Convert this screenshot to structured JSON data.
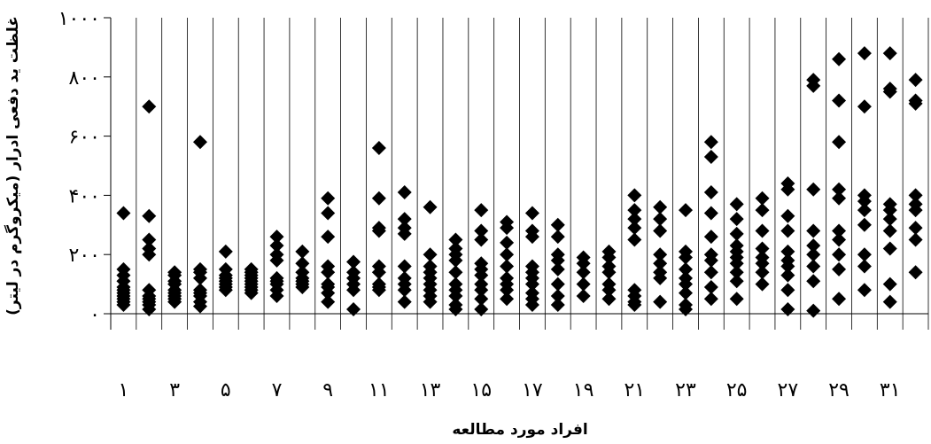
{
  "chart_data": {
    "type": "scatter",
    "xlabel": "افراد مورد مطالعه",
    "ylabel": "غلظت ید دفعی ادرار (میکروگرم در لیتر)",
    "ylim": [
      0,
      1000
    ],
    "y_ticks": [
      0,
      200,
      400,
      600,
      800,
      1000
    ],
    "y_tick_labels": [
      "۰",
      "۲۰۰",
      "۴۰۰",
      "۶۰۰",
      "۸۰۰",
      "۱۰۰۰"
    ],
    "x_categories": [
      1,
      2,
      3,
      4,
      5,
      6,
      7,
      8,
      9,
      10,
      11,
      12,
      13,
      14,
      15,
      16,
      17,
      18,
      19,
      20,
      21,
      22,
      23,
      24,
      25,
      26,
      27,
      28,
      29,
      30,
      31,
      32
    ],
    "x_tick_labels": [
      {
        "subject": 1,
        "label": "۱"
      },
      {
        "subject": 3,
        "label": "۳"
      },
      {
        "subject": 5,
        "label": "۵"
      },
      {
        "subject": 7,
        "label": "۷"
      },
      {
        "subject": 9,
        "label": "۹"
      },
      {
        "subject": 11,
        "label": "۱۱"
      },
      {
        "subject": 13,
        "label": "۱۳"
      },
      {
        "subject": 15,
        "label": "۱۵"
      },
      {
        "subject": 17,
        "label": "۱۷"
      },
      {
        "subject": 19,
        "label": "۱۹"
      },
      {
        "subject": 21,
        "label": "۲۱"
      },
      {
        "subject": 23,
        "label": "۲۳"
      },
      {
        "subject": 25,
        "label": "۲۵"
      },
      {
        "subject": 27,
        "label": "۲۷"
      },
      {
        "subject": 29,
        "label": "۲۹"
      },
      {
        "subject": 31,
        "label": "۳۱"
      }
    ],
    "grid": "vertical lines separating subjects",
    "marker": "diamond",
    "marker_color": "#000000",
    "points": [
      {
        "subject": 1,
        "values": [
          340,
          150,
          130,
          110,
          90,
          80,
          70,
          60,
          50,
          40,
          30
        ]
      },
      {
        "subject": 2,
        "values": [
          700,
          330,
          250,
          220,
          200,
          80,
          60,
          50,
          40,
          30,
          15
        ]
      },
      {
        "subject": 3,
        "values": [
          140,
          130,
          110,
          100,
          80,
          70,
          60,
          50,
          40
        ]
      },
      {
        "subject": 4,
        "values": [
          580,
          150,
          140,
          120,
          80,
          70,
          60,
          40,
          25
        ]
      },
      {
        "subject": 5,
        "values": [
          210,
          150,
          130,
          120,
          110,
          100,
          90,
          80
        ]
      },
      {
        "subject": 6,
        "values": [
          150,
          140,
          130,
          120,
          110,
          100,
          90,
          80,
          70
        ]
      },
      {
        "subject": 7,
        "values": [
          260,
          230,
          200,
          180,
          120,
          110,
          100,
          80,
          60
        ]
      },
      {
        "subject": 8,
        "values": [
          210,
          170,
          140,
          120,
          110,
          100,
          90
        ]
      },
      {
        "subject": 9,
        "values": [
          390,
          340,
          260,
          160,
          140,
          100,
          90,
          70,
          40
        ]
      },
      {
        "subject": 10,
        "values": [
          175,
          140,
          120,
          100,
          80,
          15
        ]
      },
      {
        "subject": 11,
        "values": [
          560,
          390,
          290,
          280,
          160,
          140,
          100,
          90,
          80
        ]
      },
      {
        "subject": 12,
        "values": [
          410,
          320,
          290,
          270,
          160,
          120,
          100,
          80,
          40
        ]
      },
      {
        "subject": 13,
        "values": [
          360,
          200,
          160,
          140,
          120,
          100,
          80,
          60,
          40
        ]
      },
      {
        "subject": 14,
        "values": [
          250,
          220,
          200,
          180,
          140,
          100,
          80,
          60,
          30,
          15
        ]
      },
      {
        "subject": 15,
        "values": [
          350,
          280,
          250,
          170,
          150,
          130,
          100,
          80,
          50,
          15
        ]
      },
      {
        "subject": 16,
        "values": [
          310,
          290,
          240,
          200,
          160,
          120,
          100,
          80,
          50
        ]
      },
      {
        "subject": 17,
        "values": [
          340,
          280,
          260,
          160,
          140,
          120,
          100,
          70,
          50,
          30
        ]
      },
      {
        "subject": 18,
        "values": [
          300,
          260,
          200,
          180,
          150,
          100,
          60,
          30
        ]
      },
      {
        "subject": 19,
        "values": [
          190,
          170,
          140,
          100,
          60
        ]
      },
      {
        "subject": 20,
        "values": [
          210,
          190,
          160,
          140,
          100,
          80,
          50
        ]
      },
      {
        "subject": 21,
        "values": [
          400,
          350,
          320,
          290,
          250,
          80,
          60,
          40,
          30
        ]
      },
      {
        "subject": 22,
        "values": [
          360,
          320,
          280,
          200,
          170,
          140,
          120,
          40
        ]
      },
      {
        "subject": 23,
        "values": [
          350,
          210,
          190,
          150,
          120,
          100,
          70,
          30,
          15
        ]
      },
      {
        "subject": 24,
        "values": [
          580,
          530,
          410,
          340,
          260,
          200,
          180,
          140,
          90,
          50
        ]
      },
      {
        "subject": 25,
        "values": [
          370,
          320,
          270,
          230,
          210,
          190,
          170,
          140,
          110,
          50
        ]
      },
      {
        "subject": 26,
        "values": [
          390,
          350,
          280,
          220,
          190,
          170,
          140,
          100
        ]
      },
      {
        "subject": 27,
        "values": [
          440,
          420,
          330,
          280,
          210,
          180,
          160,
          130,
          80,
          15
        ]
      },
      {
        "subject": 28,
        "values": [
          790,
          770,
          420,
          280,
          230,
          200,
          160,
          110,
          10
        ]
      },
      {
        "subject": 29,
        "values": [
          860,
          720,
          580,
          420,
          390,
          280,
          250,
          200,
          150,
          50
        ]
      },
      {
        "subject": 30,
        "values": [
          880,
          700,
          400,
          380,
          350,
          300,
          200,
          160,
          80
        ]
      },
      {
        "subject": 31,
        "values": [
          880,
          760,
          750,
          370,
          350,
          320,
          280,
          220,
          100,
          40
        ]
      },
      {
        "subject": 32,
        "values": [
          790,
          720,
          710,
          400,
          370,
          350,
          290,
          250,
          140
        ]
      }
    ]
  }
}
